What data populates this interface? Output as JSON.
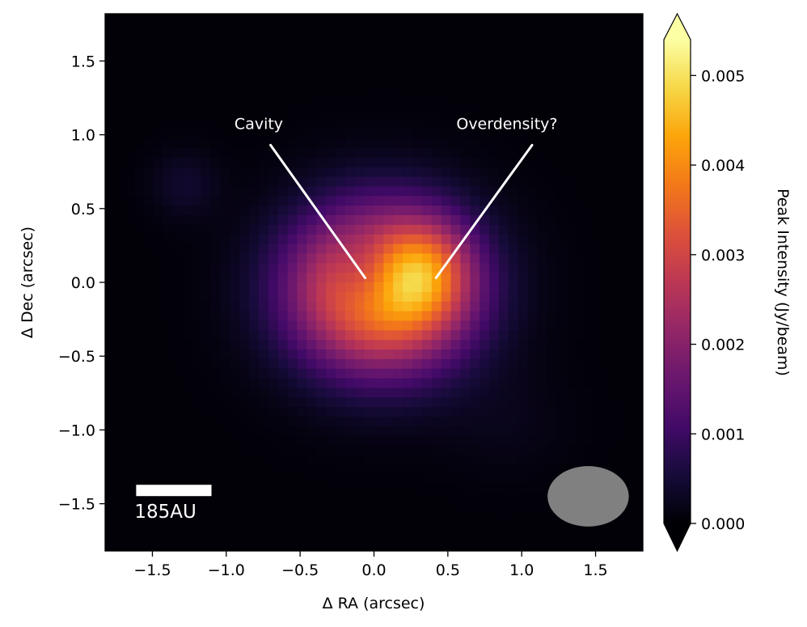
{
  "chart_data": {
    "type": "heatmap",
    "title": "",
    "xlabel": "Δ RA (arcsec)",
    "ylabel": "Δ Dec (arcsec)",
    "xlim": [
      -1.82,
      1.82
    ],
    "ylim": [
      -1.82,
      1.82
    ],
    "x_ticks": [
      -1.5,
      -1.0,
      -0.5,
      0.0,
      0.5,
      1.0,
      1.5
    ],
    "y_ticks": [
      -1.5,
      -1.0,
      -0.5,
      0.0,
      0.5,
      1.0,
      1.5
    ],
    "x_tick_labels": [
      "−1.5",
      "−1.0",
      "−0.5",
      "0.0",
      "0.5",
      "1.0",
      "1.5"
    ],
    "y_tick_labels": [
      "−1.5",
      "−1.0",
      "−0.5",
      "0.0",
      "0.5",
      "1.0",
      "1.5"
    ],
    "colormap": "inferno",
    "colorbar": {
      "label": "Peak Intensity (Jy/beam)",
      "vmin": 0.0,
      "vmax": 0.0054,
      "extend": "both",
      "ticks": [
        0.0,
        0.001,
        0.002,
        0.003,
        0.004,
        0.005
      ],
      "tick_labels": [
        "0.000",
        "0.001",
        "0.002",
        "0.003",
        "0.004",
        "0.005"
      ]
    },
    "emission_model": {
      "components": [
        {
          "name": "disk",
          "center": [
            0.05,
            -0.05
          ],
          "sigma": [
            0.42,
            0.38
          ],
          "amplitude": 0.0046
        },
        {
          "name": "overdensity",
          "center": [
            0.38,
            0.08
          ],
          "sigma": [
            0.2,
            0.24
          ],
          "amplitude": 0.0013
        },
        {
          "name": "faint-knot",
          "center": [
            -1.28,
            0.66
          ],
          "sigma": [
            0.16,
            0.16
          ],
          "amplitude": 0.00038
        },
        {
          "name": "faint-patch",
          "center": [
            0.9,
            -0.95
          ],
          "sigma": [
            0.3,
            0.25
          ],
          "amplitude": 0.00016
        }
      ],
      "cavity": {
        "center": [
          -0.06,
          0.05
        ],
        "sigma": [
          0.16,
          0.2
        ],
        "depth": 0.0012
      }
    },
    "annotations": [
      {
        "text": "Cavity",
        "label_at": [
          -0.78,
          1.04
        ],
        "line_from": [
          -0.7,
          0.93
        ],
        "line_to": [
          -0.06,
          0.03
        ]
      },
      {
        "text": "Overdensity?",
        "label_at": [
          0.9,
          1.04
        ],
        "line_from": [
          1.07,
          0.93
        ],
        "line_to": [
          0.42,
          0.03
        ]
      }
    ],
    "scale_bar": {
      "label": "185AU",
      "from": -1.61,
      "to": -1.1,
      "y": -1.41
    },
    "beam": {
      "center": [
        1.45,
        -1.45
      ],
      "major_arcsec": 0.55,
      "minor_arcsec": 0.41,
      "color": "#808080"
    }
  },
  "colors": {
    "annotation": "#ffffff",
    "beam": "#808080",
    "axis": "#000000"
  }
}
